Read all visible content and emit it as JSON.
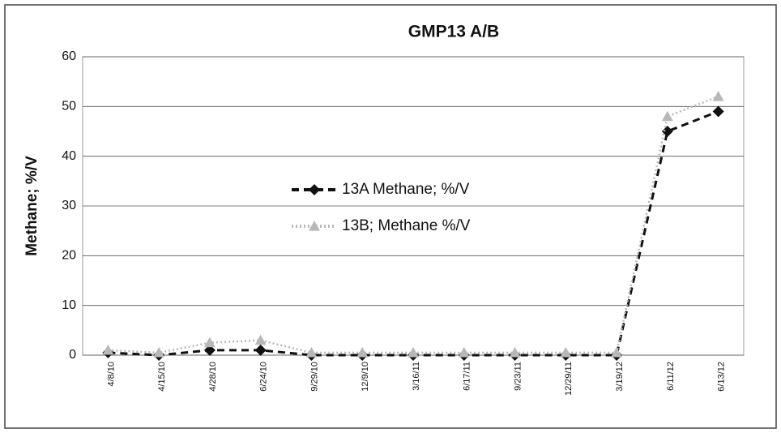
{
  "chart_data": {
    "type": "line",
    "title": "GMP13 A/B",
    "ylabel": "Methane; %/V",
    "categories": [
      "4/8/10",
      "4/15/10",
      "4/28/10",
      "6/24/10",
      "9/29/10",
      "12/9/10",
      "3/16/11",
      "6/17/11",
      "9/23/11",
      "12/29/11",
      "3/19/12",
      "6/11/12",
      "6/13/12"
    ],
    "series": [
      {
        "name": "13A Methane; %/V",
        "color": "#111111",
        "dash": "9 6",
        "marker": "diamond",
        "values": [
          0.5,
          0,
          1,
          1,
          0,
          0,
          0,
          0,
          0,
          0,
          0,
          45,
          49
        ]
      },
      {
        "name": "13B; Methane %/V",
        "color": "#b8b8b8",
        "dash": "2 3",
        "marker": "triangle",
        "values": [
          1,
          0.5,
          2.5,
          3,
          0.5,
          0.5,
          0.5,
          0.5,
          0.5,
          0.5,
          0.5,
          48,
          52
        ]
      }
    ],
    "ylim": [
      0,
      60
    ],
    "yticks": [
      0,
      10,
      20,
      30,
      40,
      50,
      60
    ],
    "grid": true,
    "legend": "center"
  }
}
